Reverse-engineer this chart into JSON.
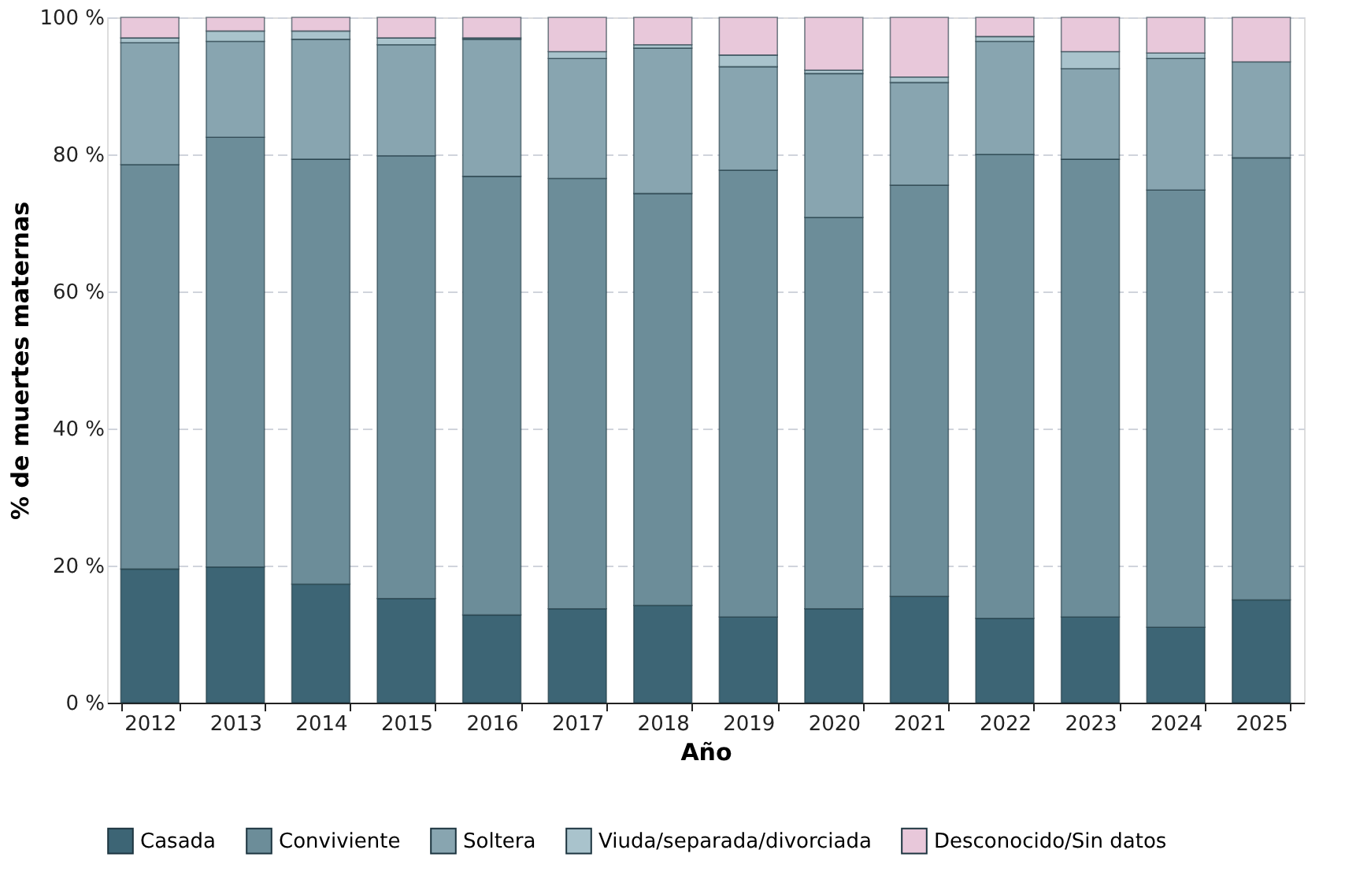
{
  "chart_data": {
    "type": "bar",
    "stacked": true,
    "xlabel": "Año",
    "ylabel": "% de muertes maternas",
    "categories": [
      "2012",
      "2013",
      "2014",
      "2015",
      "2016",
      "2017",
      "2018",
      "2019",
      "2020",
      "2021",
      "2022",
      "2023",
      "2024",
      "2025"
    ],
    "series": [
      {
        "name": "Casada",
        "color": "#3d6575",
        "values": [
          19.5,
          19.8,
          17.3,
          15.2,
          12.8,
          13.7,
          14.2,
          12.5,
          13.7,
          15.5,
          12.3,
          12.5,
          11,
          15
        ]
      },
      {
        "name": "Conviviente",
        "color": "#6c8d99",
        "values": [
          59,
          62.7,
          62,
          64.6,
          64,
          62.8,
          60.1,
          65.2,
          57.1,
          60,
          67.7,
          66.8,
          63.8,
          64.5
        ]
      },
      {
        "name": "Soltera",
        "color": "#88a5b0",
        "values": [
          17.8,
          14,
          17.5,
          16.2,
          20,
          17.5,
          21.2,
          15.1,
          21,
          15,
          16.5,
          13.2,
          19.2,
          14
        ]
      },
      {
        "name": "Viuda/separada/divorciada",
        "color": "#a9c3cc",
        "values": [
          0.7,
          1.5,
          1.2,
          1,
          0.2,
          1,
          0.5,
          1.7,
          0.5,
          0.8,
          0.7,
          2.5,
          0.8,
          null
        ]
      },
      {
        "name": "Desconocido/Sin datos",
        "color": "#e8c8da",
        "values": [
          3,
          2,
          2,
          3,
          3,
          5,
          4,
          5.5,
          7.7,
          8.7,
          2.8,
          5,
          5.2,
          6.5
        ]
      }
    ],
    "ylim": [
      0,
      100
    ],
    "yticks": [
      {
        "value": 0,
        "label": "0 %"
      },
      {
        "value": 20,
        "label": "20 %"
      },
      {
        "value": 40,
        "label": "40 %"
      },
      {
        "value": 60,
        "label": "60 %"
      },
      {
        "value": 80,
        "label": "80 %"
      },
      {
        "value": 100,
        "label": "100 %"
      }
    ],
    "grid": "y",
    "legend": "bottom"
  }
}
